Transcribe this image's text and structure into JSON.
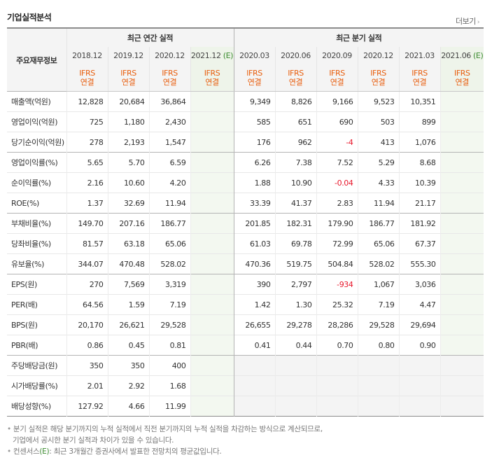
{
  "title": "기업실적분석",
  "more_label": "더보기",
  "more_arrow": "›",
  "row_header": "주요재무정보",
  "annual_group": "최근 연간 실적",
  "quarter_group": "최근 분기 실적",
  "annual_periods": [
    "2018.12",
    "2019.12",
    "2020.12",
    "2021.12"
  ],
  "quarter_periods": [
    "2020.03",
    "2020.06",
    "2020.09",
    "2020.12",
    "2021.03",
    "2021.06"
  ],
  "estimate_mark": "(E)",
  "ifrs_label": "IFRS",
  "consol_label": "연결",
  "rows": [
    {
      "label": "매출액(억원)",
      "group_start": true,
      "annual": [
        "12,828",
        "20,684",
        "36,864",
        ""
      ],
      "quarter": [
        "9,349",
        "8,826",
        "9,166",
        "9,523",
        "10,351",
        ""
      ]
    },
    {
      "label": "영업이익(억원)",
      "annual": [
        "725",
        "1,180",
        "2,430",
        ""
      ],
      "quarter": [
        "585",
        "651",
        "690",
        "503",
        "899",
        ""
      ]
    },
    {
      "label": "당기순이익(억원)",
      "annual": [
        "278",
        "2,193",
        "1,547",
        ""
      ],
      "quarter": [
        "176",
        "962",
        "-4",
        "413",
        "1,076",
        ""
      ]
    },
    {
      "label": "영업이익률(%)",
      "group_start": true,
      "annual": [
        "5.65",
        "5.70",
        "6.59",
        ""
      ],
      "quarter": [
        "6.26",
        "7.38",
        "7.52",
        "5.29",
        "8.68",
        ""
      ]
    },
    {
      "label": "순이익률(%)",
      "annual": [
        "2.16",
        "10.60",
        "4.20",
        ""
      ],
      "quarter": [
        "1.88",
        "10.90",
        "-0.04",
        "4.33",
        "10.39",
        ""
      ]
    },
    {
      "label": "ROE(%)",
      "annual": [
        "1.37",
        "32.69",
        "11.94",
        ""
      ],
      "quarter": [
        "33.39",
        "41.37",
        "2.83",
        "11.94",
        "21.17",
        ""
      ]
    },
    {
      "label": "부채비율(%)",
      "group_start": true,
      "annual": [
        "149.70",
        "207.16",
        "186.77",
        ""
      ],
      "quarter": [
        "201.85",
        "182.31",
        "179.90",
        "186.77",
        "181.92",
        ""
      ]
    },
    {
      "label": "당좌비율(%)",
      "annual": [
        "81.57",
        "63.18",
        "65.06",
        ""
      ],
      "quarter": [
        "61.03",
        "69.78",
        "72.99",
        "65.06",
        "67.37",
        ""
      ]
    },
    {
      "label": "유보율(%)",
      "annual": [
        "344.07",
        "470.48",
        "528.02",
        ""
      ],
      "quarter": [
        "470.36",
        "519.75",
        "504.84",
        "528.02",
        "555.30",
        ""
      ]
    },
    {
      "label": "EPS(원)",
      "group_start": true,
      "annual": [
        "270",
        "7,569",
        "3,319",
        ""
      ],
      "quarter": [
        "390",
        "2,797",
        "-934",
        "1,067",
        "3,036",
        ""
      ]
    },
    {
      "label": "PER(배)",
      "annual": [
        "64.56",
        "1.59",
        "7.19",
        ""
      ],
      "quarter": [
        "1.42",
        "1.30",
        "25.32",
        "7.19",
        "4.47",
        ""
      ]
    },
    {
      "label": "BPS(원)",
      "annual": [
        "20,170",
        "26,621",
        "29,528",
        ""
      ],
      "quarter": [
        "26,655",
        "29,278",
        "28,286",
        "29,528",
        "29,694",
        ""
      ]
    },
    {
      "label": "PBR(배)",
      "annual": [
        "0.86",
        "0.45",
        "0.81",
        ""
      ],
      "quarter": [
        "0.41",
        "0.44",
        "0.70",
        "0.80",
        "0.90",
        ""
      ]
    },
    {
      "label": "주당배당금(원)",
      "group_start": true,
      "blank_quarter": true,
      "annual": [
        "350",
        "350",
        "400",
        ""
      ],
      "quarter": [
        "",
        "",
        "",
        "",
        "",
        ""
      ]
    },
    {
      "label": "시가배당률(%)",
      "blank_quarter": true,
      "annual": [
        "2.01",
        "2.92",
        "1.68",
        ""
      ],
      "quarter": [
        "",
        "",
        "",
        "",
        "",
        ""
      ]
    },
    {
      "label": "배당성향(%)",
      "blank_quarter": true,
      "annual": [
        "127.92",
        "4.66",
        "11.99",
        ""
      ],
      "quarter": [
        "",
        "",
        "",
        "",
        "",
        ""
      ]
    }
  ],
  "notes": [
    "분기 실적은 해당 분기까지의 누적 실적에서 직전 분기까지의 누적 실적을 차감하는 방식으로 계산되므로,",
    "기업에서 공시한 분기 실적과 차이가 있을 수 있습니다."
  ],
  "consensus_note": {
    "prefix": "컨센서스",
    "mark": "(E)",
    "suffix": ": 최근 3개월간 증권사에서 발표한 전망치의 평균값입니다."
  },
  "colors": {
    "ifrs": "#e85d0c",
    "negative": "#e8172b",
    "estimate_bg": "#eef4ea",
    "estimate_text": "#3a8a2e"
  }
}
